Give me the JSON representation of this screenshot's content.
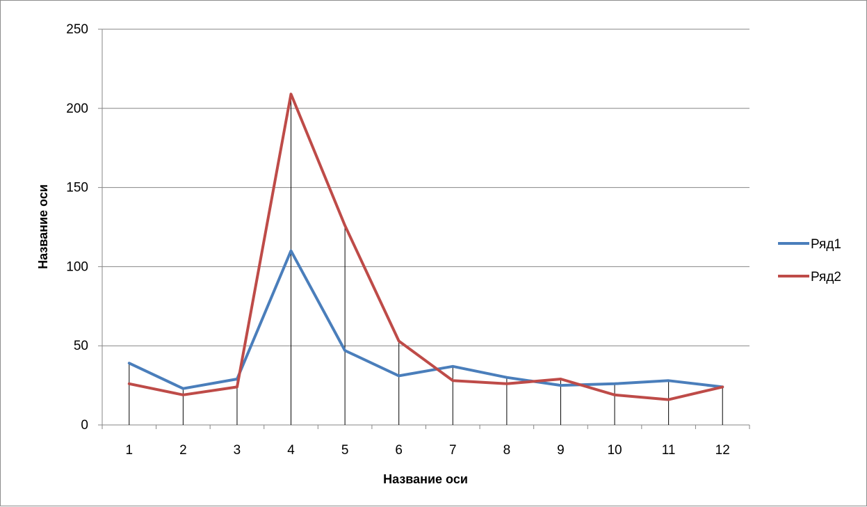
{
  "chart_data": {
    "type": "line",
    "categories": [
      "1",
      "2",
      "3",
      "4",
      "5",
      "6",
      "7",
      "8",
      "9",
      "10",
      "11",
      "12"
    ],
    "series": [
      {
        "name": "Ряд1",
        "color": "#4a7ebb",
        "values": [
          39,
          23,
          29,
          110,
          47,
          31,
          37,
          30,
          25,
          26,
          28,
          24
        ]
      },
      {
        "name": "Ряд2",
        "color": "#be4b48",
        "values": [
          26,
          19,
          24,
          209,
          126,
          53,
          28,
          26,
          29,
          19,
          16,
          24
        ]
      }
    ],
    "title": "",
    "xlabel": "Название оси",
    "ylabel": "Название оси",
    "ylim": [
      0,
      250
    ],
    "yticks": [
      "0",
      "50",
      "100",
      "150",
      "200",
      "250"
    ],
    "grid": true,
    "drop_lines": true,
    "legend_position": "right"
  }
}
